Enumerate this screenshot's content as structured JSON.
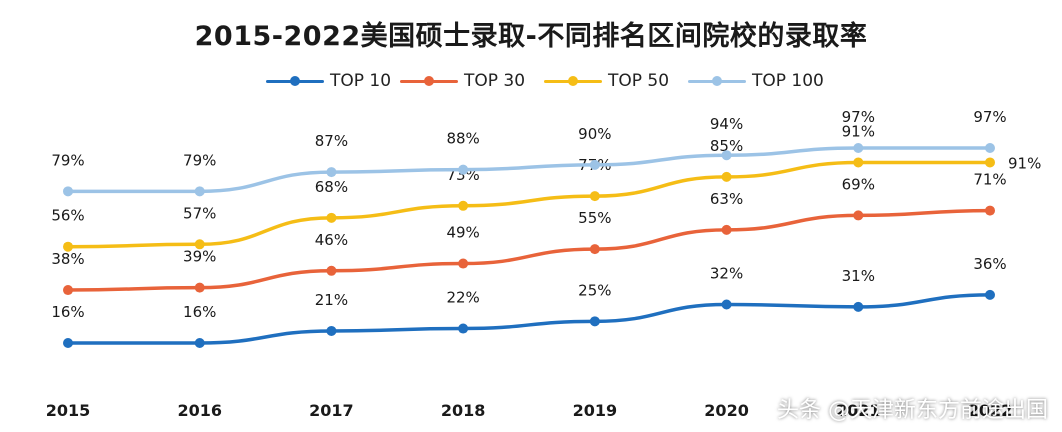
{
  "chart_data": {
    "type": "line",
    "title": "2015-2022美国硕士录取-不同排名区间院校的录取率",
    "categories": [
      "2015",
      "2016",
      "2017",
      "2018",
      "2019",
      "2020",
      "2021",
      "2022"
    ],
    "series": [
      {
        "name": "TOP 10",
        "color": "#1f6fbf",
        "values": [
          16,
          16,
          21,
          22,
          25,
          32,
          31,
          36
        ],
        "labels": [
          "16%",
          "16%",
          "21%",
          "22%",
          "25%",
          "32%",
          "31%",
          "36%"
        ]
      },
      {
        "name": "TOP 30",
        "color": "#e8633a",
        "values": [
          38,
          39,
          46,
          49,
          55,
          63,
          69,
          71
        ],
        "labels": [
          "38%",
          "39%",
          "46%",
          "49%",
          "55%",
          "63%",
          "69%",
          "71%"
        ]
      },
      {
        "name": "TOP 50",
        "color": "#f5bd16",
        "values": [
          56,
          57,
          68,
          73,
          77,
          85,
          91,
          91
        ],
        "labels": [
          "56%",
          "57%",
          "68%",
          "73%",
          "77%",
          "85%",
          "91%",
          "91%"
        ]
      },
      {
        "name": "TOP 100",
        "color": "#9cc3e6",
        "values": [
          79,
          79,
          87,
          88,
          90,
          94,
          97,
          97
        ],
        "labels": [
          "79%",
          "79%",
          "87%",
          "88%",
          "90%",
          "94%",
          "97%",
          "97%"
        ]
      }
    ],
    "legend_position": "top",
    "grid": false
  },
  "source_text": "头条 @天津新东方前途出国"
}
